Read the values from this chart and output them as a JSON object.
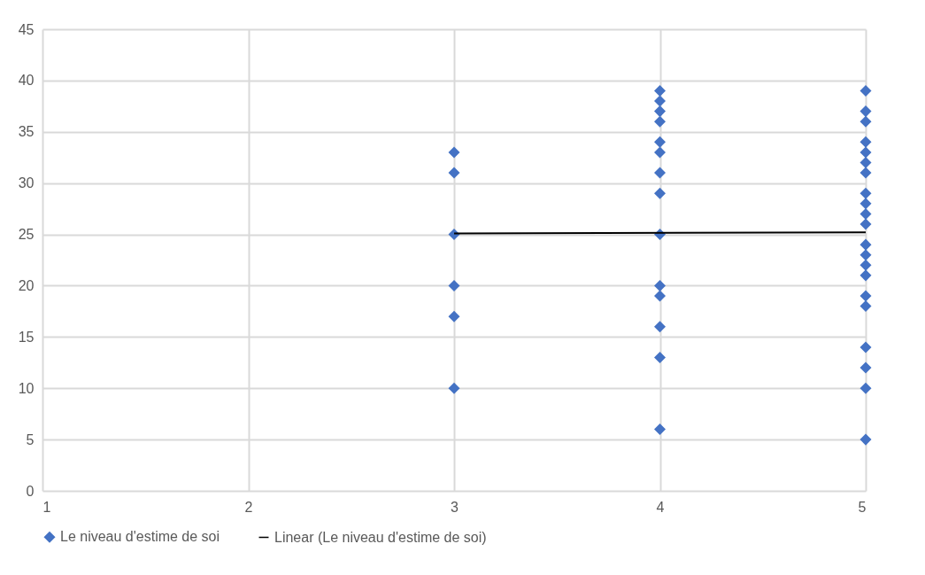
{
  "chart_data": {
    "type": "scatter",
    "xlim": [
      1,
      5
    ],
    "xticks": [
      1,
      2,
      3,
      4,
      5
    ],
    "ylim": [
      0,
      45
    ],
    "yticks": [
      0,
      5,
      10,
      15,
      20,
      25,
      30,
      35,
      40,
      45
    ],
    "grid": true,
    "legend": "bottom",
    "series": [
      {
        "name": "Le niveau d'estime de soi",
        "color": "#4472c4",
        "marker": "diamond",
        "x": [
          3,
          3,
          3,
          3,
          3,
          3,
          4,
          4,
          4,
          4,
          4,
          4,
          4,
          4,
          4,
          4,
          4,
          4,
          4,
          4,
          5,
          5,
          5,
          5,
          5,
          5,
          5,
          5,
          5,
          5,
          5,
          5,
          5,
          5,
          5,
          5,
          5,
          5,
          5,
          5,
          5
        ],
        "values": [
          33,
          31,
          25,
          20,
          17,
          10,
          39,
          38,
          37,
          36,
          34,
          33,
          31,
          29,
          25,
          20,
          19,
          16,
          13,
          6,
          39,
          37,
          36,
          34,
          33,
          32,
          31,
          29,
          28,
          27,
          26,
          24,
          23,
          22,
          21,
          19,
          18,
          14,
          12,
          10,
          5
        ]
      },
      {
        "name": "Linear (Le niveau d'estime de soi)",
        "color": "#000000",
        "type": "line",
        "marker": "none",
        "x": [
          3,
          5
        ],
        "values": [
          25.1,
          25.2
        ]
      }
    ]
  }
}
